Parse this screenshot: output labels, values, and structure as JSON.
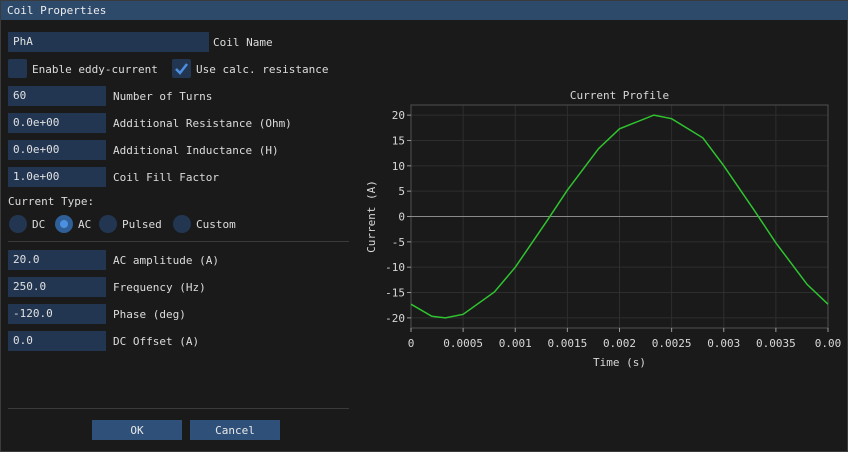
{
  "window": {
    "title": "Coil Properties"
  },
  "fields": {
    "coil_name": {
      "value": "PhA",
      "label": "Coil Name"
    },
    "turns": {
      "value": "60",
      "label": "Number of Turns"
    },
    "add_resistance": {
      "value": "0.0e+00",
      "label": "Additional Resistance (Ohm)"
    },
    "add_inductance": {
      "value": "0.0e+00",
      "label": "Additional Inductance (H)"
    },
    "fill_factor": {
      "value": "1.0e+00",
      "label": "Coil Fill Factor"
    },
    "ac_amplitude": {
      "value": "20.0",
      "label": "AC amplitude (A)"
    },
    "frequency": {
      "value": "250.0",
      "label": "Frequency (Hz)"
    },
    "phase": {
      "value": "-120.0",
      "label": "Phase (deg)"
    },
    "dc_offset": {
      "value": "0.0",
      "label": "DC Offset (A)"
    }
  },
  "checkboxes": {
    "eddy": {
      "label": "Enable eddy-current",
      "checked": false
    },
    "calc_res": {
      "label": "Use calc. resistance",
      "checked": true
    }
  },
  "current_type": {
    "label": "Current Type:",
    "options": [
      "DC",
      "AC",
      "Pulsed",
      "Custom"
    ],
    "selected": "AC"
  },
  "buttons": {
    "ok": "OK",
    "cancel": "Cancel"
  },
  "chart_data": {
    "type": "line",
    "title": "Current Profile",
    "xlabel": "Time (s)",
    "ylabel": "Current (A)",
    "xlim": [
      0,
      0.004
    ],
    "ylim": [
      -22,
      22
    ],
    "xticks": [
      "0",
      "0.0005",
      "0.001",
      "0.0015",
      "0.002",
      "0.0025",
      "0.003",
      "0.0035",
      "0.00"
    ],
    "yticks": [
      "20",
      "15",
      "10",
      "5",
      "0",
      "-5",
      "-10",
      "-15",
      "-20"
    ],
    "grid": true,
    "series": [
      {
        "color": "#2fc42f",
        "x": [
          0,
          0.0002,
          0.00033,
          0.0005,
          0.0008,
          0.001,
          0.0013,
          0.0015,
          0.0018,
          0.002,
          0.00233,
          0.0025,
          0.0028,
          0.003,
          0.0033,
          0.0035,
          0.0038,
          0.004
        ],
        "y": [
          -17.3,
          -19.7,
          -20.0,
          -19.3,
          -14.9,
          -10.0,
          -1.0,
          5.2,
          13.4,
          17.3,
          20.0,
          19.3,
          15.5,
          10.0,
          1.0,
          -5.2,
          -13.4,
          -17.3
        ]
      }
    ]
  }
}
